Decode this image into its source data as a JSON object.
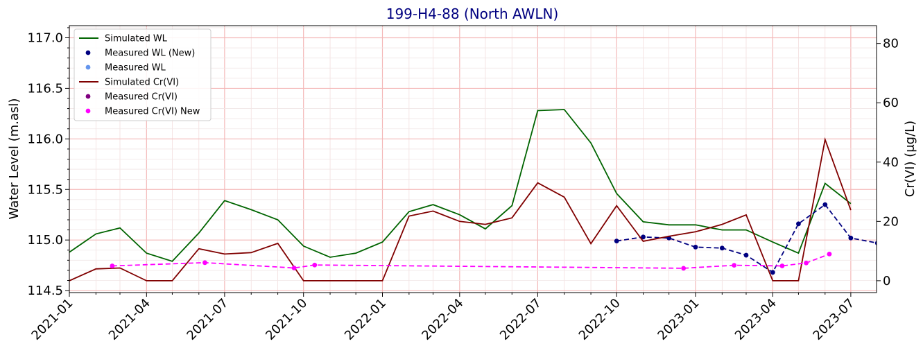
{
  "chart_data": {
    "type": "line",
    "title": "199-H4-88 (North AWLN)",
    "title_color": "#000080",
    "xlabel": "",
    "ylabel_left": "Water Level (m.asl)",
    "ylabel_right": "Cr(VI) (μg/L)",
    "x_range": [
      "2021-01-01",
      "2023-07-31"
    ],
    "x_ticks": [
      "2021-01",
      "2021-04",
      "2021-07",
      "2021-10",
      "2022-01",
      "2022-04",
      "2022-07",
      "2022-10",
      "2023-01",
      "2023-04",
      "2023-07"
    ],
    "y_left_range": [
      114.48,
      117.12
    ],
    "y_left_ticks": [
      "114.5",
      "115.0",
      "115.5",
      "116.0",
      "116.5",
      "117.0"
    ],
    "y_right_range": [
      -4,
      86
    ],
    "y_right_ticks": [
      "0",
      "20",
      "40",
      "60",
      "80"
    ],
    "grid": true,
    "legend_position": "top-left",
    "series": [
      {
        "name": "Simulated WL",
        "axis": "left",
        "style": "line",
        "color": "#006400",
        "x": [
          "2021-01-01",
          "2021-02-01",
          "2021-03-01",
          "2021-04-01",
          "2021-05-01",
          "2021-06-01",
          "2021-07-01",
          "2021-08-01",
          "2021-09-01",
          "2021-10-01",
          "2021-11-01",
          "2021-12-01",
          "2022-01-01",
          "2022-02-01",
          "2022-03-01",
          "2022-04-01",
          "2022-05-01",
          "2022-06-01",
          "2022-07-01",
          "2022-08-01",
          "2022-09-01",
          "2022-10-01",
          "2022-11-01",
          "2022-12-01",
          "2023-01-01",
          "2023-02-01",
          "2023-03-01",
          "2023-04-01",
          "2023-05-01",
          "2023-06-01",
          "2023-07-01"
        ],
        "y": [
          114.88,
          115.06,
          115.12,
          114.87,
          114.79,
          115.07,
          115.39,
          115.3,
          115.2,
          114.94,
          114.83,
          114.87,
          114.98,
          115.28,
          115.35,
          115.25,
          115.11,
          115.34,
          116.28,
          116.29,
          115.96,
          115.46,
          115.18,
          115.15,
          115.15,
          115.1,
          115.1,
          114.98,
          114.87,
          115.56,
          115.36
        ]
      },
      {
        "name": "Measured WL (New)",
        "axis": "left",
        "style": "marker-dashed",
        "color": "#000080",
        "x": [
          "2022-10-01",
          "2022-11-01",
          "2022-12-01",
          "2023-01-01",
          "2023-02-01",
          "2023-03-01",
          "2023-04-01",
          "2023-05-01",
          "2023-06-01",
          "2023-07-01",
          "2023-08-01"
        ],
        "y": [
          114.99,
          115.03,
          115.02,
          114.93,
          114.92,
          114.85,
          114.68,
          115.16,
          115.35,
          115.02,
          114.97
        ]
      },
      {
        "name": "Measured WL",
        "axis": "left",
        "style": "marker",
        "color": "#6495ED",
        "x": [],
        "y": []
      },
      {
        "name": "Simulated Cr(VI)",
        "axis": "right",
        "style": "line",
        "color": "#800000",
        "x": [
          "2021-01-01",
          "2021-02-01",
          "2021-03-01",
          "2021-04-01",
          "2021-05-01",
          "2021-06-01",
          "2021-07-01",
          "2021-08-01",
          "2021-09-01",
          "2021-10-01",
          "2021-11-01",
          "2021-12-01",
          "2022-01-01",
          "2022-02-01",
          "2022-03-01",
          "2022-04-01",
          "2022-05-01",
          "2022-06-01",
          "2022-07-01",
          "2022-08-01",
          "2022-09-01",
          "2022-10-01",
          "2022-11-01",
          "2022-12-01",
          "2023-01-01",
          "2023-02-01",
          "2023-03-01",
          "2023-04-01",
          "2023-05-01",
          "2023-06-01",
          "2023-07-01"
        ],
        "y": [
          0,
          4,
          4.3,
          0,
          0,
          10.8,
          9,
          9.5,
          12.6,
          0,
          0,
          0,
          0,
          21.8,
          23.5,
          20,
          19,
          21.2,
          33,
          28.2,
          12.5,
          25.3,
          13.3,
          15,
          16.5,
          19,
          22.2,
          0,
          0,
          47.6,
          23.8
        ]
      },
      {
        "name": "Measured Cr(VI)",
        "axis": "right",
        "style": "marker",
        "color": "#800080",
        "x": [],
        "y": []
      },
      {
        "name": "Measured Cr(VI) New",
        "axis": "right",
        "style": "marker-dashed",
        "color": "#FF00FF",
        "x": [
          "2021-02-20",
          "2021-06-08",
          "2021-09-20",
          "2021-10-14",
          "2022-12-18",
          "2023-02-15",
          "2023-04-12",
          "2023-05-10",
          "2023-06-06"
        ],
        "y": [
          5,
          6.1,
          4.3,
          5.3,
          4.2,
          5.2,
          5,
          6,
          9
        ]
      }
    ]
  }
}
